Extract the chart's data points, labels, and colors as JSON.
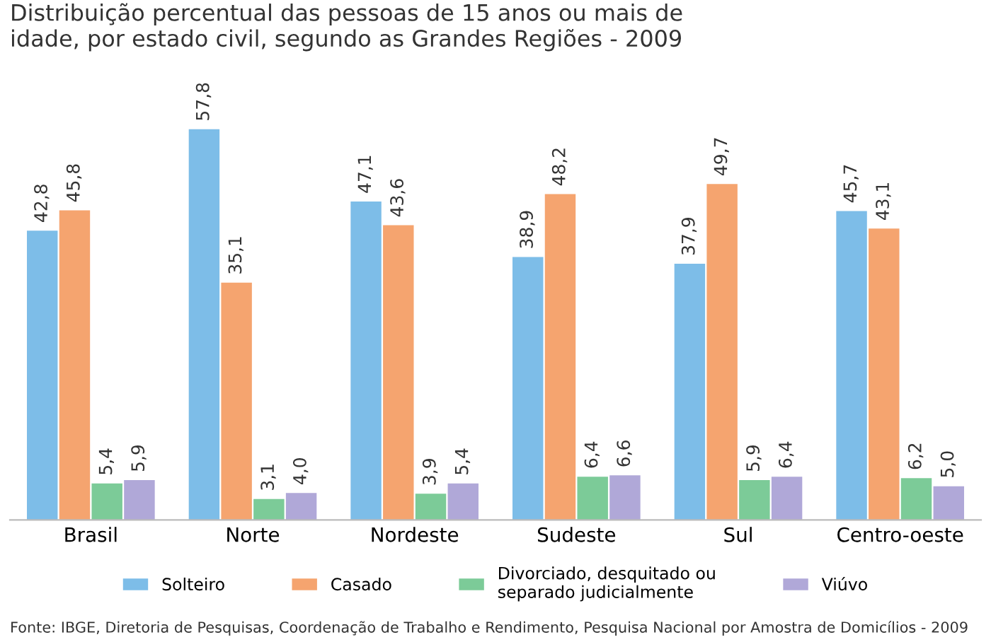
{
  "chart_data": {
    "type": "bar",
    "title": "Distribuição percentual das pessoas de 15 anos ou mais de\nidade, por estado civil, segundo as Grandes Regiões - 2009",
    "categories": [
      "Brasil",
      "Norte",
      "Nordeste",
      "Sudeste",
      "Sul",
      "Centro-oeste"
    ],
    "series": [
      {
        "name": "Solteiro",
        "color": "#7dbde8",
        "values": [
          42.8,
          57.8,
          47.1,
          38.9,
          37.9,
          45.7
        ],
        "value_labels": [
          "42,8",
          "57,8",
          "47,1",
          "38,9",
          "37,9",
          "45,7"
        ]
      },
      {
        "name": "Casado",
        "color": "#f5a46f",
        "values": [
          45.8,
          35.1,
          43.6,
          48.2,
          49.7,
          43.1
        ],
        "value_labels": [
          "45,8",
          "35,1",
          "43,6",
          "48,2",
          "49,7",
          "43,1"
        ]
      },
      {
        "name": "Divorciado, desquitado ou\nseparado judicialmente",
        "color": "#7ccb98",
        "values": [
          5.4,
          3.1,
          3.9,
          6.4,
          5.9,
          6.2
        ],
        "value_labels": [
          "5,4",
          "3,1",
          "3,9",
          "6,4",
          "5,9",
          "6,2"
        ]
      },
      {
        "name": "Viúvo",
        "color": "#b0a8d8",
        "values": [
          5.9,
          4.0,
          5.4,
          6.6,
          6.4,
          5.0
        ],
        "value_labels": [
          "5,9",
          "4,0",
          "5,4",
          "6,6",
          "6,4",
          "5,0"
        ]
      }
    ],
    "legend": "bottom",
    "annotations": [
      "Fonte: IBGE, Diretoria de Pesquisas, Coordenação de Trabalho e Rendimento, Pesquisa Nacional por Amostra de Domicílios - 2009"
    ]
  }
}
